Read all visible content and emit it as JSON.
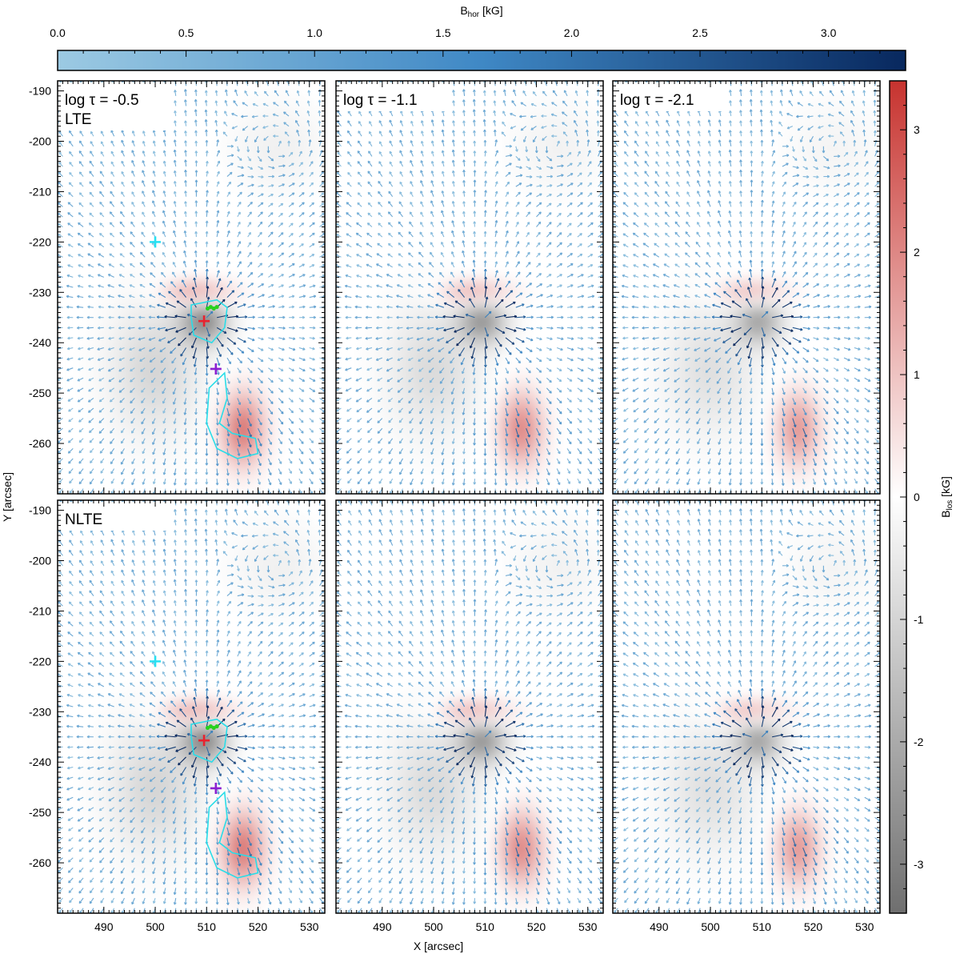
{
  "chart_data": {
    "type": "heatmap",
    "description_of_panels": "2x3 grid of magnetogram maps with horizontal-field vectors",
    "xlabel": "X [arcsec]",
    "ylabel": "Y [arcsec]",
    "xlim": [
      481,
      533
    ],
    "ylim": [
      -270,
      -188
    ],
    "x_ticks": [
      490,
      500,
      510,
      520,
      530
    ],
    "y_ticks": [
      -190,
      -200,
      -210,
      -220,
      -230,
      -240,
      -250,
      -260
    ],
    "colorbar_top": {
      "label_main": "B",
      "label_sub": "hor",
      "label_unit": " [kG]",
      "range": [
        0.0,
        3.3
      ],
      "ticks": [
        "0.0",
        "0.5",
        "1.0",
        "1.5",
        "2.0",
        "2.5",
        "3.0"
      ],
      "tick_values": [
        0.0,
        0.5,
        1.0,
        1.5,
        2.0,
        2.5,
        3.0
      ],
      "color_low": "#9ccae3",
      "color_high": "#08285e"
    },
    "colorbar_right": {
      "label_main": "B",
      "label_sub": "los",
      "label_unit": " [kG]",
      "range": [
        -3.4,
        3.4
      ],
      "ticks": [
        "3",
        "2",
        "1",
        "0",
        "-1",
        "-2",
        "-3"
      ],
      "tick_values": [
        3,
        2,
        1,
        0,
        -1,
        -2,
        -3
      ],
      "color_negative": "#6f6f6f",
      "color_zero": "#ffffff",
      "color_positive": "#c7332f"
    },
    "panels": [
      {
        "row": 0,
        "col": 0,
        "label_line1": "log τ = -0.5",
        "label_line2": "LTE",
        "markers": true,
        "contours": true
      },
      {
        "row": 0,
        "col": 1,
        "label_line1": "log τ = -1.1",
        "label_line2": "",
        "markers": false,
        "contours": false
      },
      {
        "row": 0,
        "col": 2,
        "label_line1": "log τ = -2.1",
        "label_line2": "",
        "markers": false,
        "contours": false
      },
      {
        "row": 1,
        "col": 0,
        "label_line1": "NLTE",
        "label_line2": "",
        "markers": true,
        "contours": true
      },
      {
        "row": 1,
        "col": 1,
        "label_line1": "",
        "label_line2": "",
        "markers": false,
        "contours": false
      },
      {
        "row": 1,
        "col": 2,
        "label_line1": "",
        "label_line2": "",
        "markers": false,
        "contours": false
      }
    ],
    "features": {
      "sunspot_center": [
        509.5,
        -235.5
      ],
      "negative_plage_center": [
        500,
        -245
      ],
      "positive_arc_center": [
        508,
        -230
      ],
      "positive_tail_center": [
        517,
        -257
      ],
      "vortex_center": [
        524,
        -201
      ]
    },
    "markers": [
      {
        "name": "cyan-cross",
        "x": 500,
        "y": -220,
        "color": "#27e1f2"
      },
      {
        "name": "red-cross",
        "x": 509.5,
        "y": -235.7,
        "color": "#e8222e"
      },
      {
        "name": "purple-cross",
        "x": 511.8,
        "y": -245.2,
        "color": "#8b1fd1"
      },
      {
        "name": "green-dots",
        "x": 511,
        "y": -233.2,
        "color": "#27d11e"
      }
    ]
  }
}
